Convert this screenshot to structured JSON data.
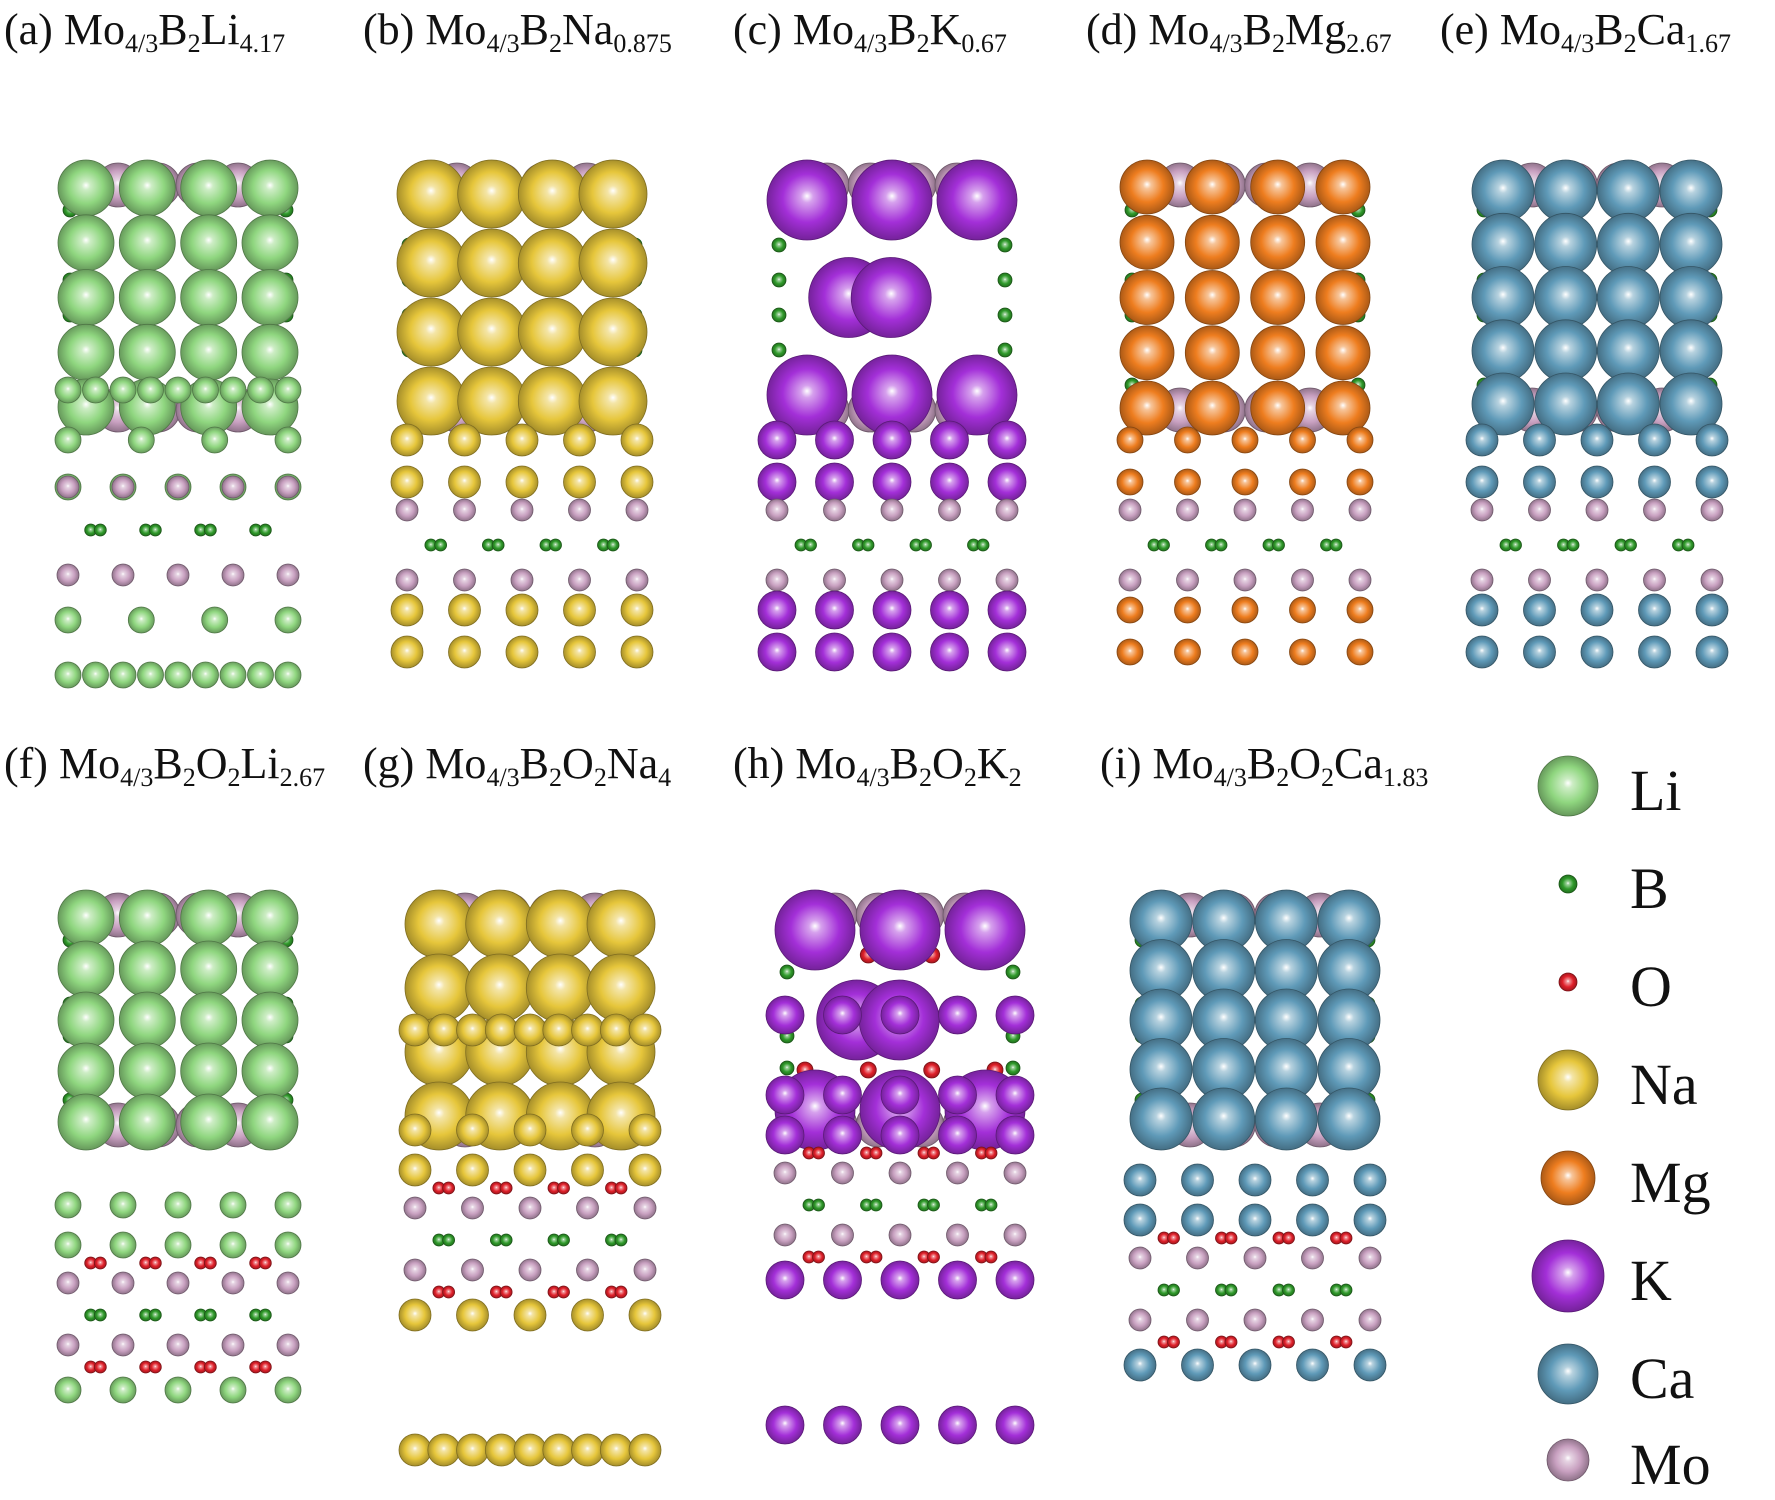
{
  "panels": [
    {
      "tag": "(a)",
      "pre": "Mo",
      "s1": "4/3",
      "mid": "B",
      "s2": "2",
      "ion": "Li",
      "s3": "4.17",
      "dopant": "Li",
      "oxide": false
    },
    {
      "tag": "(b)",
      "pre": "Mo",
      "s1": "4/3",
      "mid": "B",
      "s2": "2",
      "ion": "Na",
      "s3": "0.875",
      "dopant": "Na",
      "oxide": false
    },
    {
      "tag": "(c)",
      "pre": "Mo",
      "s1": "4/3",
      "mid": "B",
      "s2": "2",
      "ion": "K",
      "s3": "0.67",
      "dopant": "K",
      "oxide": false
    },
    {
      "tag": "(d)",
      "pre": "Mo",
      "s1": "4/3",
      "mid": "B",
      "s2": "2",
      "ion": "Mg",
      "s3": "2.67",
      "dopant": "Mg",
      "oxide": false
    },
    {
      "tag": "(e)",
      "pre": "Mo",
      "s1": "4/3",
      "mid": "B",
      "s2": "2",
      "ion": "Ca",
      "s3": "1.67",
      "dopant": "Ca",
      "oxide": false
    },
    {
      "tag": "(f)",
      "pre": "Mo",
      "s1": "4/3",
      "mid": "B",
      "s2": "2",
      "o": "O",
      "s4": "2",
      "ion": "Li",
      "s3": "2.67",
      "dopant": "Li",
      "oxide": true
    },
    {
      "tag": "(g)",
      "pre": "Mo",
      "s1": "4/3",
      "mid": "B",
      "s2": "2",
      "o": "O",
      "s4": "2",
      "ion": "Na",
      "s3": "4",
      "dopant": "Na",
      "oxide": true
    },
    {
      "tag": "(h)",
      "pre": "Mo",
      "s1": "4/3",
      "mid": "B",
      "s2": "2",
      "o": "O",
      "s4": "2",
      "ion": "K",
      "s3": "2",
      "dopant": "K",
      "oxide": true
    },
    {
      "tag": "(i)",
      "pre": "Mo",
      "s1": "4/3",
      "mid": "B",
      "s2": "2",
      "o": "O",
      "s4": "2",
      "ion": "Ca",
      "s3": "1.83",
      "dopant": "Ca",
      "oxide": true
    }
  ],
  "legend": [
    {
      "label": "Li",
      "color": "#8fd67f",
      "size": "large"
    },
    {
      "label": "B",
      "color": "#2f9a2a",
      "size": "tiny"
    },
    {
      "label": "O",
      "color": "#e0202a",
      "size": "tiny"
    },
    {
      "label": "Na",
      "color": "#e6c63b",
      "size": "large"
    },
    {
      "label": "Mg",
      "color": "#ee7d1f",
      "size": "medium"
    },
    {
      "label": "K",
      "color": "#a32fd8",
      "size": "xlarge"
    },
    {
      "label": "Ca",
      "color": "#5f9ab8",
      "size": "large"
    },
    {
      "label": "Mo",
      "color": "#c8a0c0",
      "size": "small"
    }
  ]
}
